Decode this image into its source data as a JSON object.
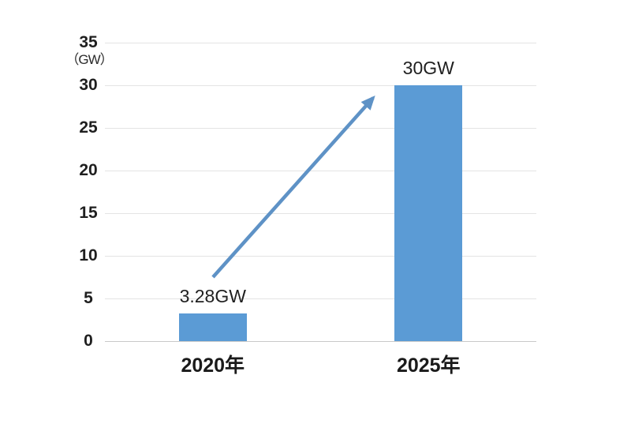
{
  "chart_data": {
    "type": "bar",
    "title": "",
    "categories": [
      "2020年",
      "2025年"
    ],
    "values": [
      3.28,
      30
    ],
    "bar_labels": [
      "3.28GW",
      "30GW"
    ],
    "unit_label": "（GW）",
    "xlabel": "",
    "ylabel": "GW",
    "y_ticks": [
      0,
      5,
      10,
      15,
      20,
      25,
      30,
      35
    ],
    "ylim": [
      0,
      35
    ],
    "grid": "horizontal-only",
    "legend": "none",
    "annotation": {
      "type": "arrow",
      "description": "upward growth arrow from 2020 bar label to top of 2025 bar"
    },
    "colors": {
      "bar": "#5B9BD5",
      "arrow": "#5E92C6",
      "gridline": "#E4E4E4",
      "baseline": "#C9C9C9",
      "axis_text": "#1F1F1F",
      "background": "#FFFFFF"
    }
  }
}
